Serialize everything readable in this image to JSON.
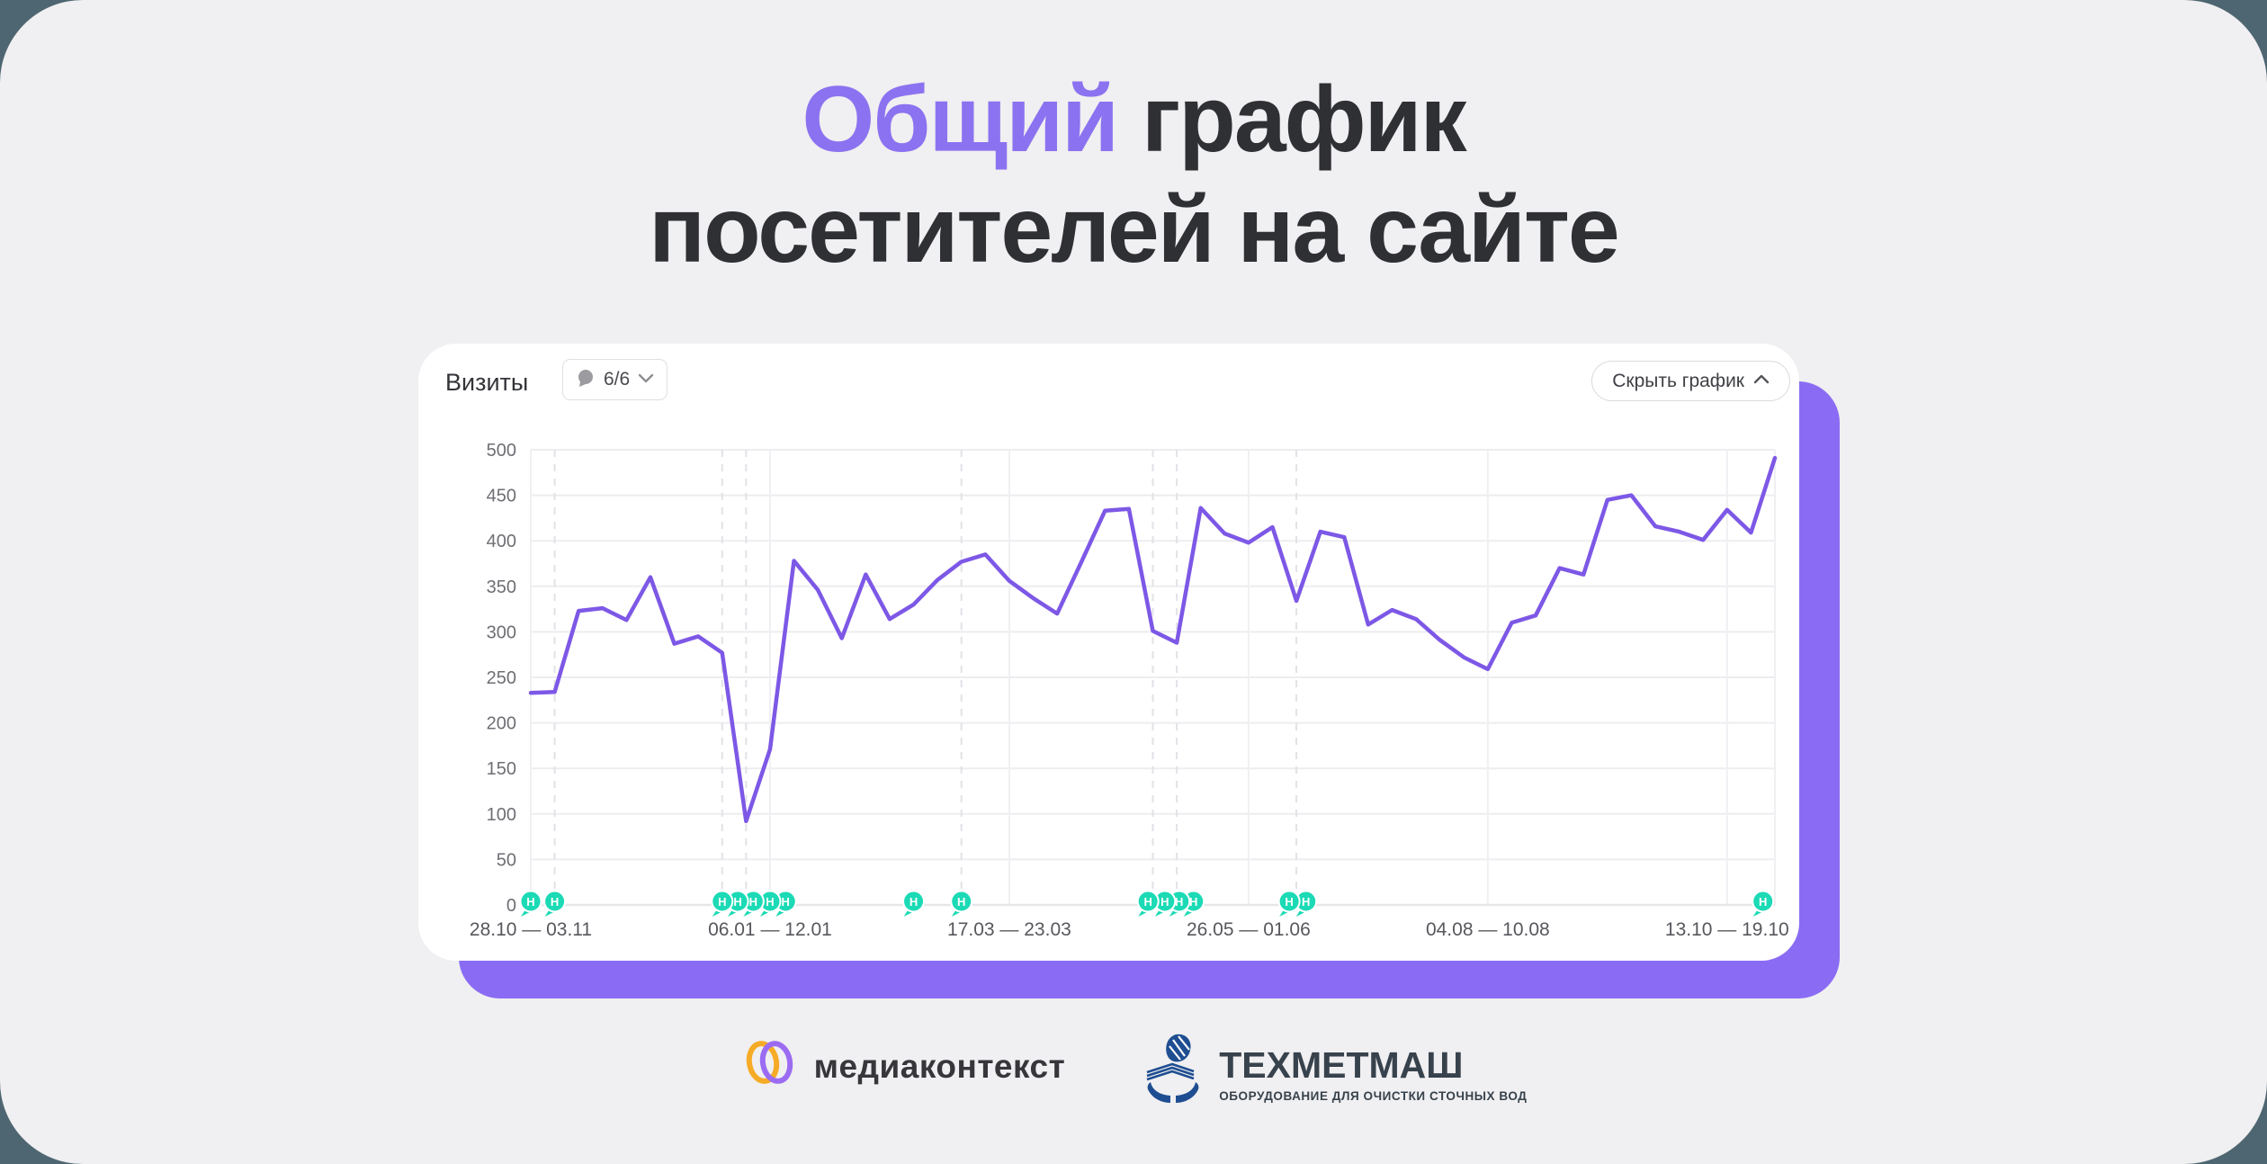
{
  "page": {
    "background": "#4E6671",
    "panel_background": "#F0EFF1"
  },
  "title": {
    "line1_highlight": "Общий",
    "line1_rest": " график",
    "line2": "посетителей на сайте",
    "highlight_color": "#8B72F0",
    "text_color": "#2F3034"
  },
  "card": {
    "metric_label": "Визиты",
    "notes_button": {
      "count_label": "6/6",
      "icon": "speech-bubble-icon",
      "chevron": "down"
    },
    "hide_button": {
      "label": "Скрыть график",
      "chevron": "up"
    },
    "shadow_color": "#8A6CF4"
  },
  "chart_data": {
    "type": "line",
    "title": "Визиты",
    "ylabel": "",
    "xlabel": "",
    "ylim": [
      0,
      500
    ],
    "y_ticks": [
      0,
      50,
      100,
      150,
      200,
      250,
      300,
      350,
      400,
      450,
      500
    ],
    "grid": true,
    "line_color": "#7D58E6",
    "values": [
      233,
      234,
      323,
      326,
      313,
      360,
      287,
      295,
      277,
      92,
      171,
      378,
      346,
      293,
      363,
      314,
      330,
      357,
      377,
      385,
      356,
      337,
      320,
      376,
      433,
      435,
      301,
      288,
      436,
      408,
      398,
      415,
      334,
      410,
      404,
      308,
      324,
      314,
      291,
      272,
      259,
      310,
      318,
      370,
      363,
      445,
      450,
      416,
      410,
      401,
      434,
      409,
      491
    ],
    "x_tick_labels": [
      {
        "index": 0,
        "label": "28.10 — 03.11"
      },
      {
        "index": 10,
        "label": "06.01 — 12.01"
      },
      {
        "index": 20,
        "label": "17.03 — 23.03"
      },
      {
        "index": 30,
        "label": "26.05 — 01.06"
      },
      {
        "index": 40,
        "label": "04.08 — 10.08"
      },
      {
        "index": 50,
        "label": "13.10 — 19.10"
      }
    ],
    "x_grid_indices": [
      0,
      10,
      20,
      30,
      40,
      50,
      52
    ],
    "dashed_guide_indices": [
      1,
      8,
      9,
      18,
      26,
      27,
      32
    ],
    "note_markers": {
      "letter": "Н",
      "color": "#1BDAB5",
      "indices": [
        0,
        1,
        8,
        8.65,
        9.3,
        10,
        10.65,
        16,
        18,
        25.8,
        26.5,
        27.1,
        27.7,
        31.7,
        32.4,
        51.5
      ]
    },
    "colors": {
      "h_grid": "#EDEDF0",
      "v_grid": "#F0F0F3",
      "dashed": "#E2E2E7",
      "axis_line": "#E7E7EA",
      "y_tick_text": "#6E6E74",
      "x_tick_text": "#57575D"
    }
  },
  "footer": {
    "logo1": {
      "name": "медиаконтекст",
      "ring1_color": "#F6AB26",
      "ring2_color": "#9B6CF2"
    },
    "logo2": {
      "name": "ТЕХМЕТМАШ",
      "subtitle": "ОБОРУДОВАНИЕ ДЛЯ ОЧИСТКИ СТОЧНЫХ ВОД",
      "icon_color": "#1E4E91"
    }
  }
}
